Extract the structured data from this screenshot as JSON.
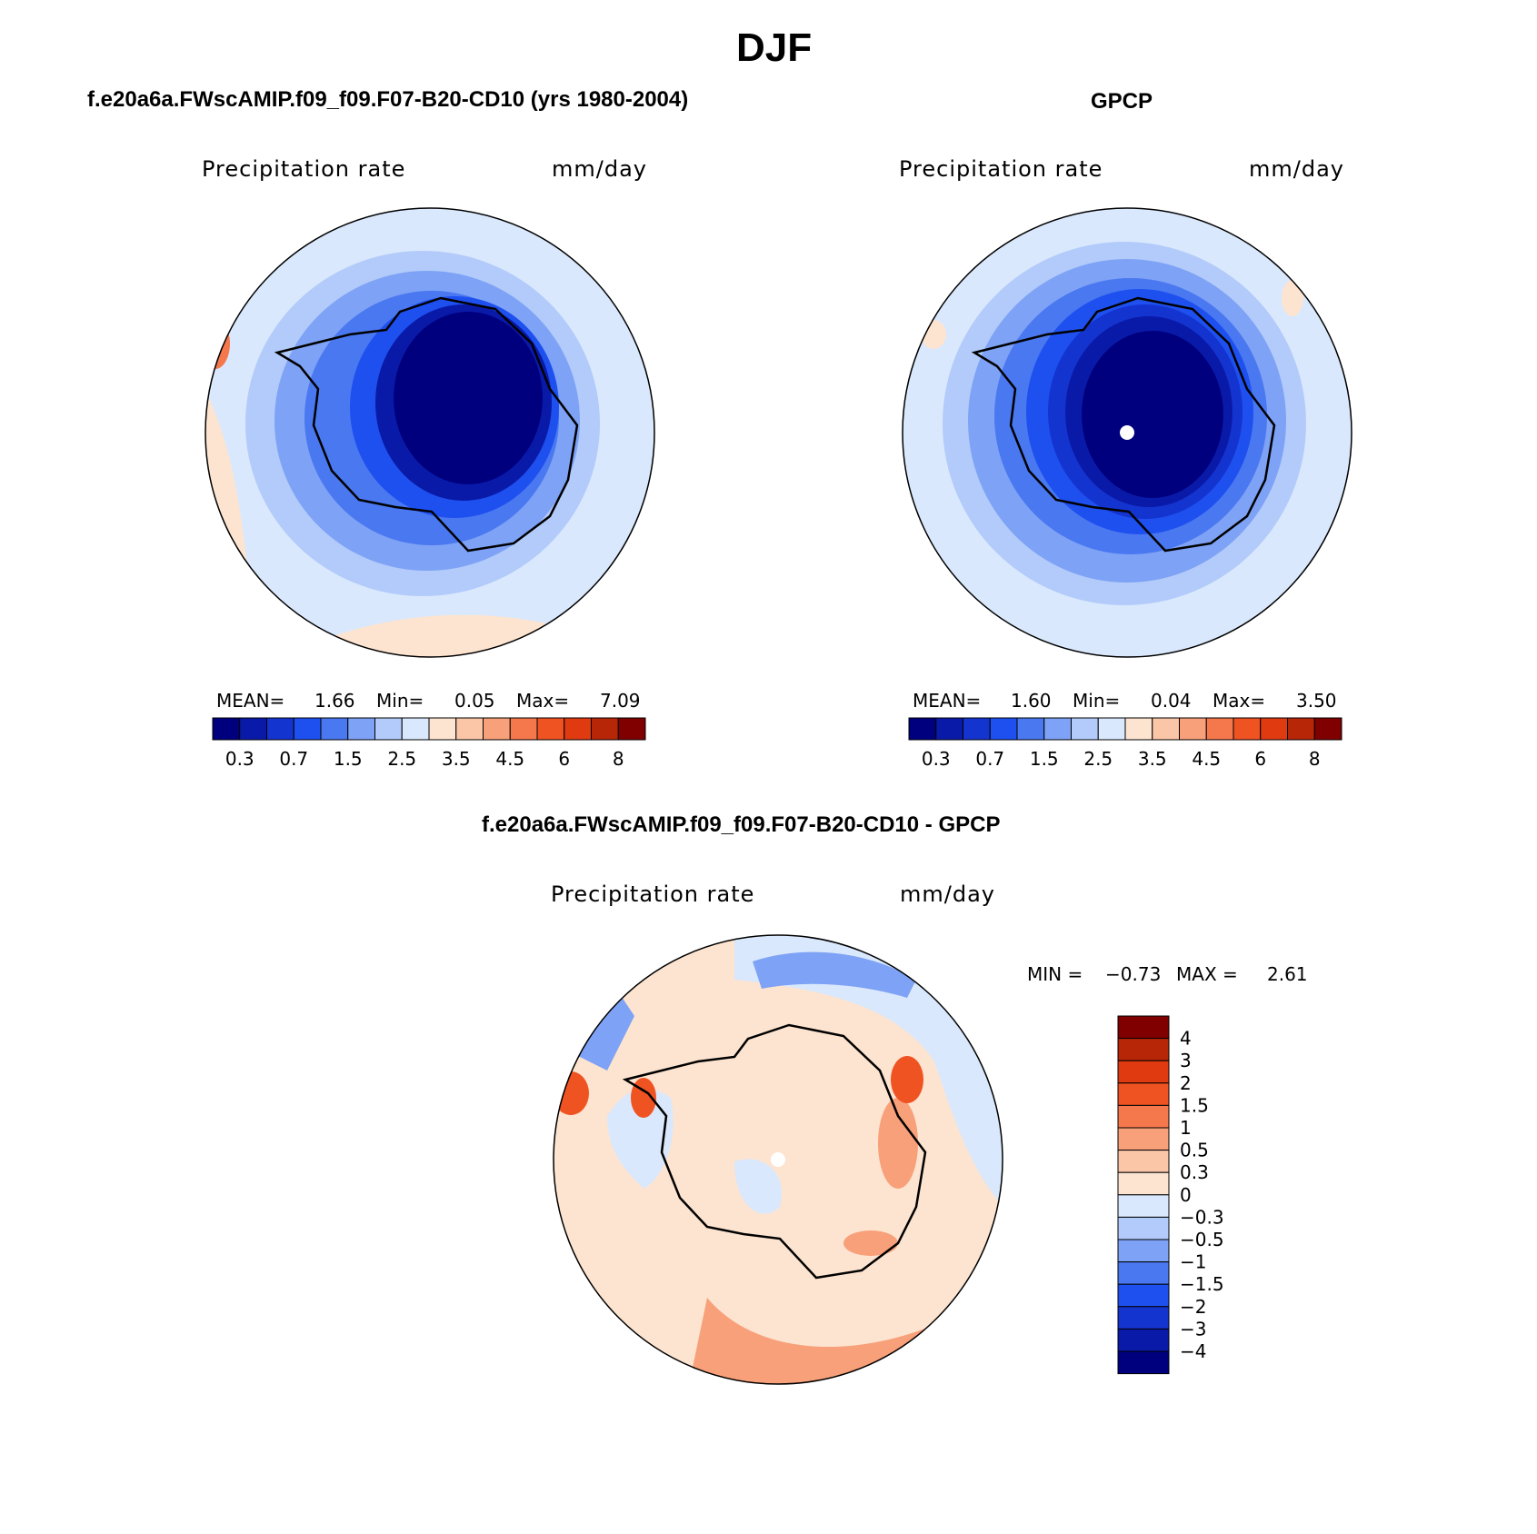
{
  "season": "DJF",
  "colors": {
    "levels": [
      "#00007f",
      "#0a1aa8",
      "#1434d0",
      "#1e50f0",
      "#4a78f0",
      "#7ea2f5",
      "#b2cbfa",
      "#d9e8fc",
      "#fde4d0",
      "#fbc6a8",
      "#f8a07a",
      "#f5784c",
      "#f05322",
      "#e03a10",
      "#b82608",
      "#800000"
    ],
    "diff_levels": [
      "#00007f",
      "#0a1aa8",
      "#1434d0",
      "#1e50f0",
      "#4a78f0",
      "#7ea2f5",
      "#b2cbfa",
      "#d9e8fc",
      "#fde4d0",
      "#fbc6a8",
      "#f8a07a",
      "#f5784c",
      "#f05322",
      "#e03a10",
      "#b82608",
      "#800000"
    ],
    "coast": "#000000"
  },
  "chart_data": [
    {
      "type": "heatmap",
      "panel": "model",
      "title": "f.e20a6a.FWscAMIP.f09_f09.F07-B20-CD10 (yrs 1980-2004)",
      "field_label": "Precipitation rate",
      "units": "mm/day",
      "stats": {
        "mean_label": "MEAN=",
        "mean": "1.66",
        "min_label": "Min=",
        "min": "0.05",
        "max_label": "Max=",
        "max": "7.09"
      },
      "contour_levels": [
        0.2,
        0.3,
        0.5,
        0.7,
        1,
        1.5,
        2,
        2.5,
        3,
        3.5,
        4,
        4.5,
        5,
        6,
        7,
        8
      ],
      "colorbar_labels": [
        "0.3",
        "0.7",
        "1.5",
        "2.5",
        "3.5",
        "4.5",
        "6",
        "8"
      ]
    },
    {
      "type": "heatmap",
      "panel": "obs",
      "title": "GPCP",
      "field_label": "Precipitation rate",
      "units": "mm/day",
      "stats": {
        "mean_label": "MEAN=",
        "mean": "1.60",
        "min_label": "Min=",
        "min": "0.04",
        "max_label": "Max=",
        "max": "3.50"
      },
      "contour_levels": [
        0.2,
        0.3,
        0.5,
        0.7,
        1,
        1.5,
        2,
        2.5,
        3,
        3.5,
        4,
        4.5,
        5,
        6,
        7,
        8
      ],
      "colorbar_labels": [
        "0.3",
        "0.7",
        "1.5",
        "2.5",
        "3.5",
        "4.5",
        "6",
        "8"
      ]
    },
    {
      "type": "heatmap",
      "panel": "difference",
      "title": "f.e20a6a.FWscAMIP.f09_f09.F07-B20-CD10 - GPCP",
      "field_label": "Precipitation rate",
      "units": "mm/day",
      "stats": {
        "min_label": "MIN =",
        "min": "−0.73",
        "max_label": "MAX =",
        "max": "2.61"
      },
      "colorbar_labels": [
        "4",
        "3",
        "2",
        "1.5",
        "1",
        "0.5",
        "0.3",
        "0",
        "−0.3",
        "−0.5",
        "−1",
        "−1.5",
        "−2",
        "−3",
        "−4"
      ]
    }
  ]
}
